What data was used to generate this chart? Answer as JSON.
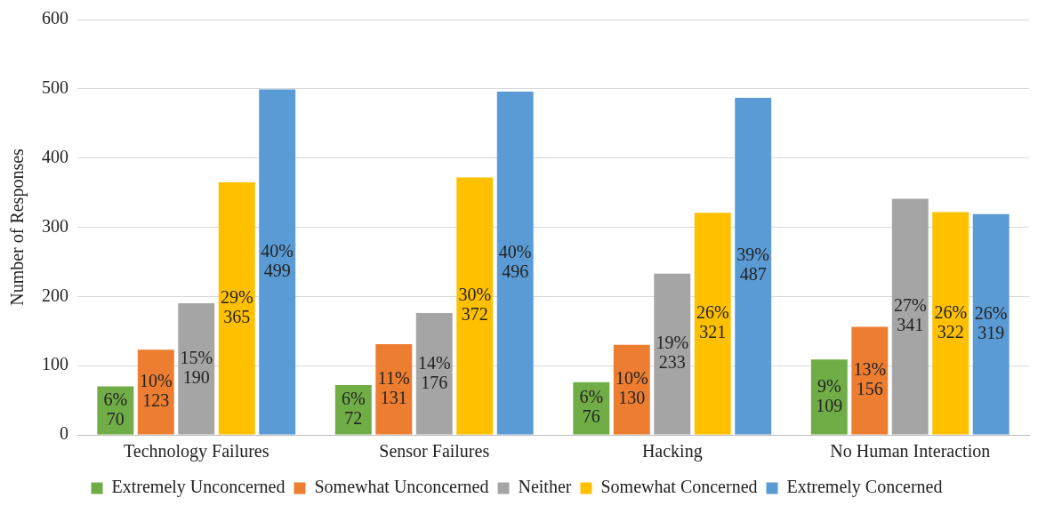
{
  "chart_data": {
    "type": "bar",
    "ylabel": "Number of Responses",
    "categories": [
      "Technology Failures",
      "Sensor Failures",
      "Hacking",
      "No Human Interaction"
    ],
    "series": [
      {
        "name": "Extremely Unconcerned",
        "color": "#70ad47",
        "values": [
          70,
          72,
          76,
          109
        ],
        "value_labels": [
          "6%\n70",
          "6%\n72",
          "6%\n76",
          "9%\n109"
        ]
      },
      {
        "name": "Somewhat Unconcerned",
        "color": "#ed7d31",
        "values": [
          123,
          131,
          130,
          156
        ],
        "value_labels": [
          "10%\n123",
          "11%\n131",
          "10%\n130",
          "13%\n156"
        ]
      },
      {
        "name": "Neither",
        "color": "#a5a5a5",
        "values": [
          190,
          176,
          233,
          341
        ],
        "value_labels": [
          "15%\n190",
          "14%\n176",
          "19%\n233",
          "27%\n341"
        ]
      },
      {
        "name": "Somewhat Concerned",
        "color": "#ffc000",
        "values": [
          365,
          372,
          321,
          322
        ],
        "value_labels": [
          "29%\n365",
          "30%\n372",
          "26%\n321",
          "26%\n322"
        ]
      },
      {
        "name": "Extremely Concerned",
        "color": "#5b9bd5",
        "values": [
          499,
          496,
          487,
          319
        ],
        "value_labels": [
          "40%\n499",
          "40%\n496",
          "39%\n487",
          "26%\n319"
        ]
      }
    ],
    "ylim": [
      0,
      600
    ],
    "yticks": [
      0,
      100,
      200,
      300,
      400,
      500,
      600
    ],
    "grid": "y",
    "legend": "bottom"
  }
}
